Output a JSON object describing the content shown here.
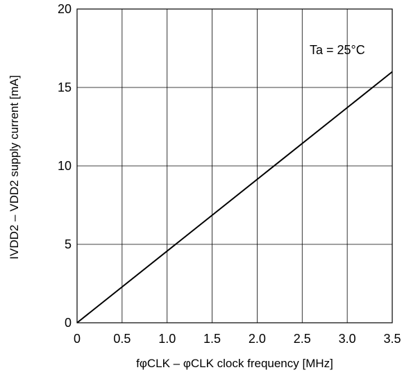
{
  "chart_data": {
    "type": "line",
    "title": "",
    "xlabel": "fφCLK – φCLK clock frequency [MHz]",
    "ylabel": "IVDD2 – VDD2 supply current [mA]",
    "xlim": [
      0,
      3.5
    ],
    "ylim": [
      0,
      20
    ],
    "x_ticks": [
      0,
      0.5,
      1.0,
      1.5,
      2.0,
      2.5,
      3.0,
      3.5
    ],
    "x_tick_labels": [
      "0",
      "0.5",
      "1.0",
      "1.5",
      "2.0",
      "2.5",
      "3.0",
      "3.5"
    ],
    "y_ticks": [
      0,
      5,
      10,
      15,
      20
    ],
    "y_tick_labels": [
      "0",
      "5",
      "10",
      "15",
      "20"
    ],
    "grid": true,
    "series": [
      {
        "x": [
          0,
          3.5
        ],
        "y": [
          0,
          16
        ],
        "color": "#000000"
      }
    ],
    "annotations": [
      {
        "text": "Ta = 25°C"
      }
    ]
  }
}
